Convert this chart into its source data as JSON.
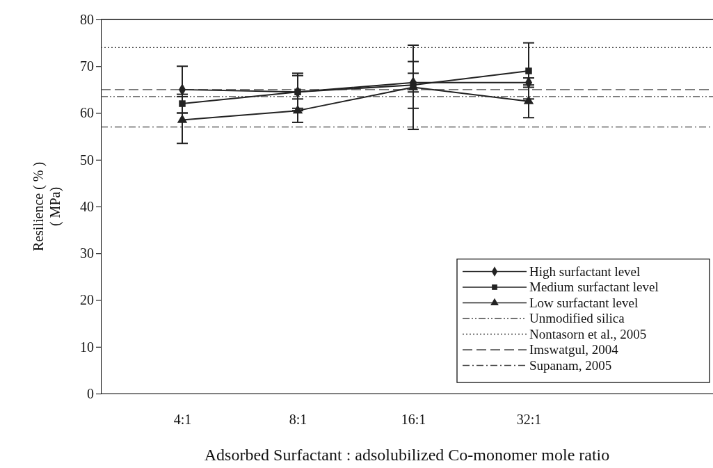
{
  "chart_data": {
    "type": "line",
    "xlabel": "Adsorbed Surfactant : adsolubilized Co-monomer mole ratio",
    "ylabel": "Resilience ( % )\n( MPa)",
    "categories": [
      "4:1",
      "8:1",
      "16:1",
      "32:1"
    ],
    "ylim": [
      0,
      80
    ],
    "yticks": [
      0,
      10,
      20,
      30,
      40,
      50,
      60,
      70,
      80
    ],
    "grid": false,
    "legend": "bottom right",
    "line_style": "solid",
    "series": [
      {
        "name": "High surfactant level",
        "color": "#222222",
        "marker": "diamond",
        "values": [
          65,
          64.5,
          66.5,
          66.5
        ],
        "errors": [
          5,
          4,
          2,
          1
        ]
      },
      {
        "name": "Medium surfactant level",
        "color": "#222222",
        "marker": "square",
        "values": [
          62,
          64.5,
          66,
          69
        ],
        "errors": [
          2,
          3.5,
          5,
          6
        ]
      },
      {
        "name": "Low surfactant level",
        "color": "#222222",
        "marker": "triangle",
        "values": [
          58.5,
          60.5,
          65.5,
          62.5
        ],
        "errors": [
          5,
          2.5,
          9,
          3.5
        ]
      }
    ],
    "ref_lines": [
      {
        "axis": "y",
        "value": 63.5,
        "label": "Unmodified silica",
        "color": "#444444",
        "line_style": "dashdotdot"
      },
      {
        "axis": "y",
        "value": 74,
        "label": "Nontasorn et al., 2005",
        "color": "#444444",
        "line_style": "dotted"
      },
      {
        "axis": "y",
        "value": 65,
        "label": "Imswatgul, 2004",
        "color": "#444444",
        "line_style": "dashed"
      },
      {
        "axis": "y",
        "value": 57,
        "label": "Supanam, 2005",
        "color": "#444444",
        "line_style": "dashdot"
      }
    ]
  }
}
